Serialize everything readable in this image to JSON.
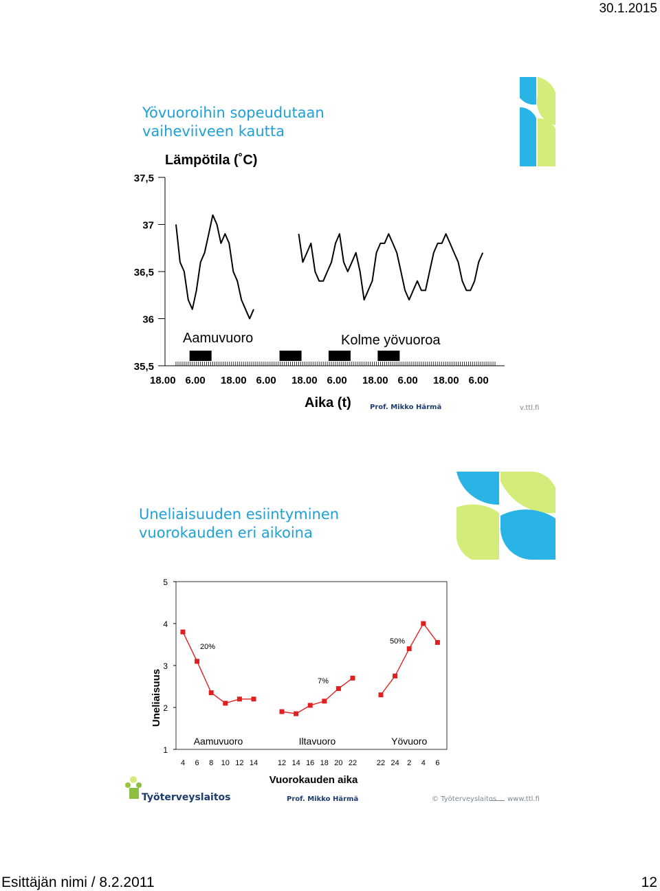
{
  "header": {
    "date": "30.1.2015"
  },
  "footer": {
    "presenter": "Esittäjän nimi / 8.2.2011",
    "page_number": "12"
  },
  "colors": {
    "title_blue": "#1ea0d8",
    "logo_green": "#d4ec7a",
    "logo_cyan": "#2ab4e6",
    "series_red": "#e02020",
    "credit_navy": "#1c3c6e"
  },
  "slide1": {
    "title_line1": "Yövuoroihin sopeudutaan",
    "title_line2": "vaiheviiveen kautta",
    "credit": "Prof. Mikko Härmä",
    "url_fragment": "v.ttl.fi"
  },
  "slide2": {
    "title_line1": "Uneliaisuuden esiintyminen",
    "title_line2": "vuorokauden eri aikoina",
    "credit": "Prof. Mikko Härmä",
    "copyright": "© Työterveyslaitos",
    "url": "www.ttl.fi",
    "logo_text": "Työterveyslaitos"
  },
  "chart_data": [
    {
      "type": "line",
      "title": "Lämpötila (˚C)",
      "xlabel": "Aika (t)",
      "ylabel": "",
      "yticks": [
        "37,5",
        "37",
        "36,5",
        "36",
        "35,5"
      ],
      "ylim": [
        35.5,
        37.5
      ],
      "xticks": [
        "18.00",
        "6.00",
        "18.00",
        "6.00",
        "18.00",
        "6.00",
        "18.00",
        "6.00",
        "18.00",
        "6.00"
      ],
      "annotations": [
        "Aamuvuoro",
        "Kolme yövuoroa"
      ],
      "work_periods": 4,
      "series": [
        {
          "segment": "aamuvuoro",
          "x_hours": [
            0,
            2,
            4,
            6,
            8,
            10,
            12,
            14,
            16,
            18,
            20,
            22,
            24,
            26,
            28,
            30,
            32,
            34,
            36,
            38
          ],
          "y": [
            37.0,
            36.6,
            36.5,
            36.2,
            36.1,
            36.3,
            36.6,
            36.7,
            36.9,
            37.1,
            37.0,
            36.8,
            36.9,
            36.8,
            36.5,
            36.4,
            36.2,
            36.1,
            36.0,
            36.1
          ]
        },
        {
          "segment": "yovuorot",
          "x_hours": [
            60,
            62,
            64,
            66,
            68,
            70,
            72,
            74,
            76,
            78,
            80,
            82,
            84,
            86,
            88,
            90,
            92,
            94,
            96,
            98,
            100,
            102,
            104,
            106,
            108,
            110,
            112,
            114,
            116,
            118,
            120,
            122,
            124,
            126,
            128,
            130,
            132,
            134,
            136,
            138,
            140,
            142,
            144,
            146,
            148,
            150
          ],
          "y": [
            36.9,
            36.6,
            36.7,
            36.8,
            36.5,
            36.4,
            36.4,
            36.5,
            36.6,
            36.8,
            36.9,
            36.6,
            36.5,
            36.6,
            36.7,
            36.5,
            36.2,
            36.3,
            36.4,
            36.7,
            36.8,
            36.8,
            36.9,
            36.8,
            36.7,
            36.5,
            36.3,
            36.2,
            36.3,
            36.4,
            36.3,
            36.3,
            36.5,
            36.7,
            36.8,
            36.8,
            36.9,
            36.8,
            36.7,
            36.6,
            36.4,
            36.3,
            36.3,
            36.4,
            36.6,
            36.7
          ]
        }
      ]
    },
    {
      "type": "line",
      "title": "",
      "xlabel": "Vuorokauden aika",
      "ylabel": "Uneliaisuus",
      "ylim": [
        1,
        5
      ],
      "yticks": [
        "1",
        "2",
        "3",
        "4",
        "5"
      ],
      "groups": [
        {
          "label": "Aamuvuoro",
          "x": [
            "4",
            "6",
            "8",
            "10",
            "12",
            "14"
          ],
          "values": [
            3.8,
            3.1,
            2.35,
            2.1,
            2.2,
            2.2
          ],
          "annotation": "20%"
        },
        {
          "label": "Iltavuoro",
          "x": [
            "12",
            "14",
            "16",
            "18",
            "20",
            "22"
          ],
          "values": [
            1.9,
            1.85,
            2.05,
            2.15,
            2.45,
            2.7
          ],
          "annotation": "7%"
        },
        {
          "label": "Yövuoro",
          "x": [
            "22",
            "24",
            "2",
            "4",
            "6"
          ],
          "values": [
            2.3,
            2.75,
            3.4,
            4.0,
            3.55
          ],
          "annotation": "50%"
        }
      ]
    }
  ]
}
